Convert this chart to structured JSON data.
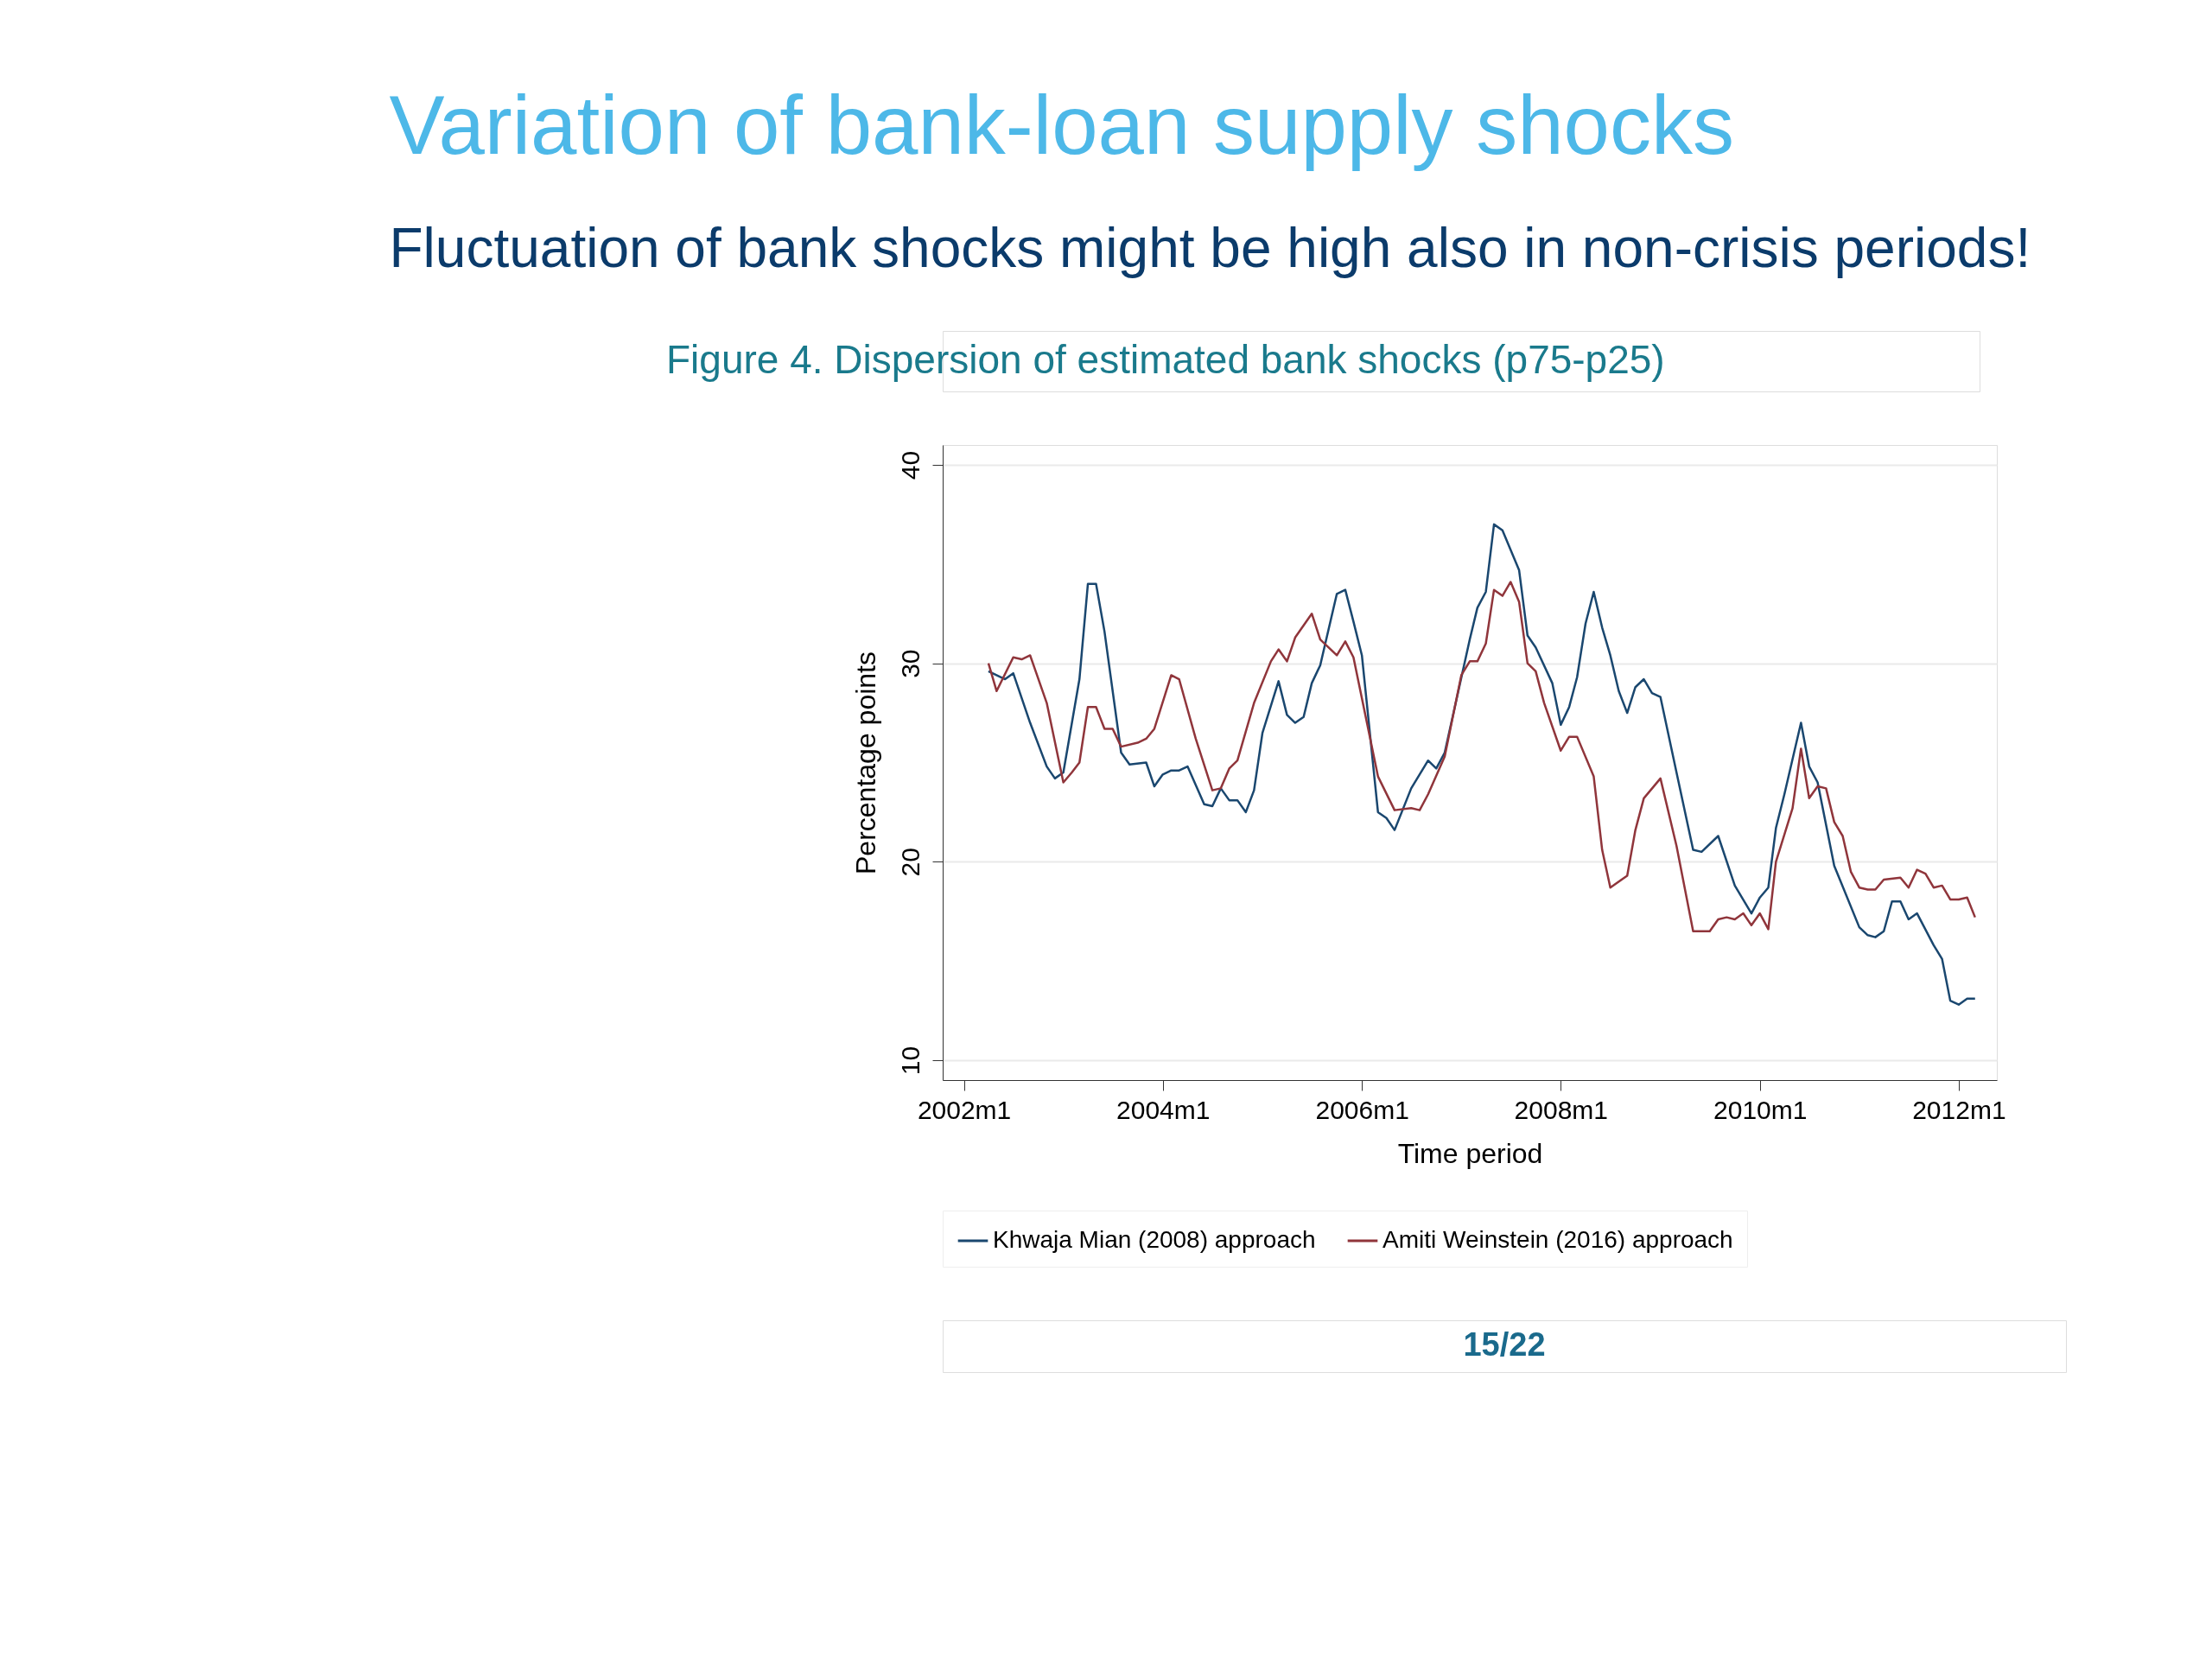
{
  "chart_data": {
    "type": "line",
    "title": "Variation of bank-loan supply shocks",
    "subtitle": "Fluctuation of bank shocks might be high also in non-crisis periods!",
    "annotations": [
      "Figure 4. Dispersion of estimated bank shocks (p75-p25)",
      "15/22"
    ],
    "xlabel": "Time period",
    "ylabel": "Percentage points",
    "xlim": [
      "2001-10-15",
      "2012-05-20"
    ],
    "ylim": [
      9,
      41
    ],
    "xticks": [
      {
        "value": "2002-01",
        "label": "2002m1"
      },
      {
        "value": "2004-01",
        "label": "2004m1"
      },
      {
        "value": "2006-01",
        "label": "2006m1"
      },
      {
        "value": "2008-01",
        "label": "2008m1"
      },
      {
        "value": "2010-01",
        "label": "2010m1"
      },
      {
        "value": "2012-01",
        "label": "2012m1"
      }
    ],
    "yticks": [
      10,
      20,
      30,
      40
    ],
    "grid": "y",
    "legend": "bottom",
    "line_style": "solid",
    "marker": "none",
    "series": [
      {
        "name": "Khwaja Mian (2008) approach",
        "color": "#1a476f",
        "x": [
          "2002-04",
          "2002-06",
          "2002-07",
          "2002-09",
          "2002-11",
          "2002-12",
          "2003-01",
          "2003-03",
          "2003-04",
          "2003-05",
          "2003-06",
          "2003-08",
          "2003-09",
          "2003-11",
          "2003-12",
          "2004-01",
          "2004-02",
          "2004-03",
          "2004-04",
          "2004-06",
          "2004-07",
          "2004-08",
          "2004-09",
          "2004-10",
          "2004-11",
          "2004-12",
          "2005-01",
          "2005-03",
          "2005-04",
          "2005-05",
          "2005-06",
          "2005-07",
          "2005-08",
          "2005-10",
          "2005-11",
          "2005-12",
          "2006-01",
          "2006-03",
          "2006-04",
          "2006-05",
          "2006-07",
          "2006-09",
          "2006-10",
          "2006-11",
          "2007-02",
          "2007-03",
          "2007-04",
          "2007-05",
          "2007-06",
          "2007-08",
          "2007-09",
          "2007-10",
          "2007-12",
          "2008-01",
          "2008-02",
          "2008-03",
          "2008-04",
          "2008-05",
          "2008-06",
          "2008-07",
          "2008-08",
          "2008-09",
          "2008-10",
          "2008-11",
          "2008-12",
          "2009-01",
          "2009-03",
          "2009-05",
          "2009-06",
          "2009-08",
          "2009-10",
          "2009-12",
          "2010-01",
          "2010-02",
          "2010-03",
          "2010-04",
          "2010-06",
          "2010-07",
          "2010-08",
          "2010-10",
          "2011-01",
          "2011-02",
          "2011-03",
          "2011-04",
          "2011-05",
          "2011-06",
          "2011-07",
          "2011-08",
          "2011-10",
          "2011-11",
          "2011-12",
          "2012-01",
          "2012-02",
          "2012-03"
        ],
        "values": [
          29.6,
          29.2,
          29.5,
          27.0,
          24.8,
          24.2,
          24.5,
          29.2,
          34.0,
          34.0,
          31.6,
          25.5,
          24.9,
          25.0,
          23.8,
          24.4,
          24.6,
          24.6,
          24.8,
          22.9,
          22.8,
          23.7,
          23.1,
          23.1,
          22.5,
          23.6,
          26.5,
          29.1,
          27.4,
          27.0,
          27.3,
          29.0,
          29.9,
          33.5,
          33.7,
          32.1,
          30.4,
          22.5,
          22.2,
          21.6,
          23.7,
          25.1,
          24.7,
          25.5,
          31.2,
          32.8,
          33.6,
          37.0,
          36.7,
          34.7,
          31.4,
          30.8,
          29.0,
          26.9,
          27.8,
          29.3,
          32.0,
          33.6,
          31.8,
          30.4,
          28.6,
          27.5,
          28.8,
          29.2,
          28.5,
          28.3,
          24.5,
          20.6,
          20.5,
          21.3,
          18.8,
          17.4,
          18.2,
          18.7,
          21.7,
          23.4,
          27.0,
          24.8,
          24.0,
          19.8,
          16.7,
          16.3,
          16.2,
          16.5,
          18.0,
          18.0,
          17.1,
          17.4,
          15.8,
          15.1,
          13.0,
          12.8,
          13.1,
          13.1
        ]
      },
      {
        "name": "Amiti Weinstein (2016) approach",
        "color": "#90353b",
        "x": [
          "2002-04",
          "2002-05",
          "2002-07",
          "2002-08",
          "2002-09",
          "2002-11",
          "2003-01",
          "2003-02",
          "2003-03",
          "2003-04",
          "2003-05",
          "2003-06",
          "2003-07",
          "2003-08",
          "2003-10",
          "2003-11",
          "2003-12",
          "2004-02",
          "2004-03",
          "2004-05",
          "2004-07",
          "2004-08",
          "2004-09",
          "2004-10",
          "2004-12",
          "2005-02",
          "2005-03",
          "2005-04",
          "2005-05",
          "2005-07",
          "2005-08",
          "2005-10",
          "2005-11",
          "2005-12",
          "2006-03",
          "2006-05",
          "2006-07",
          "2006-08",
          "2006-09",
          "2006-11",
          "2007-01",
          "2007-02",
          "2007-03",
          "2007-04",
          "2007-05",
          "2007-06",
          "2007-07",
          "2007-08",
          "2007-09",
          "2007-10",
          "2007-11",
          "2008-01",
          "2008-02",
          "2008-03",
          "2008-05",
          "2008-06",
          "2008-07",
          "2008-09",
          "2008-10",
          "2008-11",
          "2009-01",
          "2009-03",
          "2009-05",
          "2009-07",
          "2009-08",
          "2009-09",
          "2009-10",
          "2009-11",
          "2009-12",
          "2010-01",
          "2010-02",
          "2010-03",
          "2010-05",
          "2010-06",
          "2010-07",
          "2010-08",
          "2010-09",
          "2010-10",
          "2010-11",
          "2010-12",
          "2011-01",
          "2011-02",
          "2011-03",
          "2011-04",
          "2011-06",
          "2011-07",
          "2011-08",
          "2011-09",
          "2011-10",
          "2011-11",
          "2011-12",
          "2012-01",
          "2012-02",
          "2012-03"
        ],
        "values": [
          30.0,
          28.6,
          30.3,
          30.2,
          30.4,
          28.0,
          24.0,
          24.5,
          25.0,
          27.8,
          27.8,
          26.7,
          26.7,
          25.8,
          26.0,
          26.2,
          26.7,
          29.4,
          29.2,
          26.2,
          23.6,
          23.7,
          24.7,
          25.1,
          28.0,
          30.1,
          30.7,
          30.1,
          31.3,
          32.5,
          31.2,
          30.4,
          31.1,
          30.3,
          24.3,
          22.6,
          22.7,
          22.6,
          23.4,
          25.3,
          29.4,
          30.1,
          30.1,
          31.0,
          33.7,
          33.4,
          34.1,
          33.1,
          30.0,
          29.6,
          28.0,
          25.6,
          26.3,
          26.3,
          24.3,
          20.6,
          18.7,
          19.3,
          21.6,
          23.2,
          24.2,
          20.8,
          16.5,
          16.5,
          17.1,
          17.2,
          17.1,
          17.4,
          16.8,
          17.4,
          16.6,
          20.0,
          22.7,
          25.7,
          23.2,
          23.8,
          23.7,
          22.0,
          21.3,
          19.5,
          18.7,
          18.6,
          18.6,
          19.1,
          19.2,
          18.7,
          19.6,
          19.4,
          18.7,
          18.8,
          18.1,
          18.1,
          18.2,
          17.2
        ]
      }
    ]
  }
}
